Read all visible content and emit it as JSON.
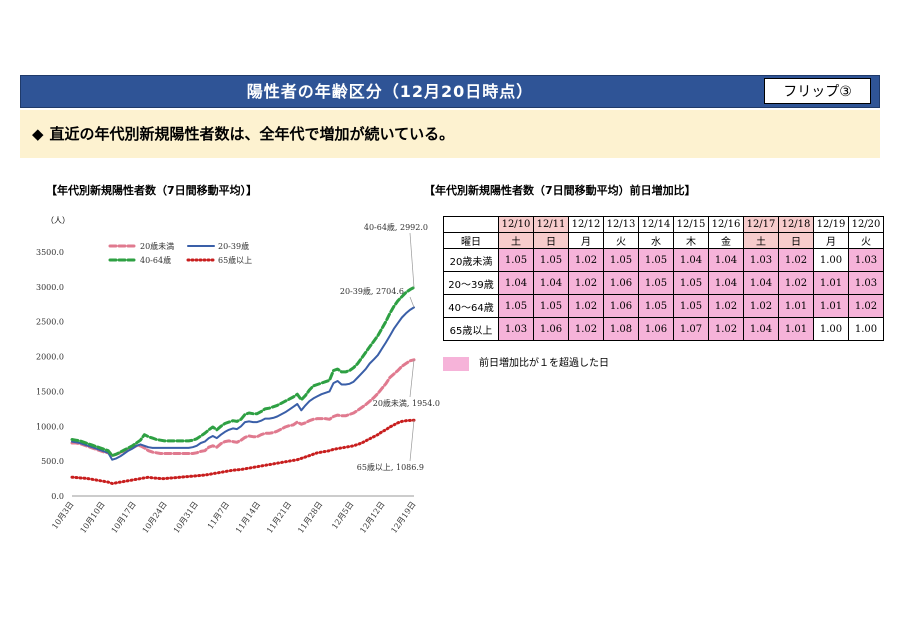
{
  "banner": {
    "title": "陽性者の年齢区分（12月20日時点）",
    "flip_label": "フリップ③"
  },
  "lead": {
    "bullet": "◆",
    "text": "直近の年代別新規陽性者数は、全年代で増加が続いている。"
  },
  "chart_title": "【年代別新規陽性者数（7日間移動平均）】",
  "table_title": "【年代別新規陽性者数（7日間移動平均）前日増加比】",
  "chart_data": {
    "type": "line",
    "y_unit": "（人）",
    "ylim": [
      0,
      3500
    ],
    "y_ticks": [
      "0.0",
      "500.0",
      "1000.0",
      "1500.0",
      "2000.0",
      "2500.0",
      "3000.0",
      "3500.0"
    ],
    "x_tick_labels": [
      "10月3日",
      "10月10日",
      "10月17日",
      "10月24日",
      "10月31日",
      "11月7日",
      "11月14日",
      "11月21日",
      "11月28日",
      "12月5日",
      "12月12日",
      "12月19日"
    ],
    "legend_position": "top-left",
    "series": [
      {
        "name": "20歳未満",
        "color": "#e07a8f",
        "style": "dashed",
        "end_label": "20歳未満, 1954.0",
        "values": [
          760,
          760,
          750,
          730,
          710,
          690,
          670,
          650,
          630,
          620,
          580,
          600,
          620,
          650,
          670,
          690,
          720,
          720,
          690,
          650,
          630,
          620,
          610,
          610,
          610,
          610,
          610,
          610,
          610,
          610,
          610,
          620,
          640,
          650,
          700,
          720,
          700,
          750,
          780,
          790,
          780,
          770,
          800,
          840,
          860,
          850,
          850,
          880,
          900,
          900,
          910,
          930,
          960,
          990,
          1010,
          1020,
          1060,
          1030,
          1050,
          1080,
          1100,
          1110,
          1110,
          1110,
          1100,
          1140,
          1160,
          1150,
          1150,
          1170,
          1190,
          1230,
          1270,
          1310,
          1360,
          1410,
          1470,
          1540,
          1610,
          1700,
          1750,
          1800,
          1860,
          1900,
          1940,
          1954
        ]
      },
      {
        "name": "20-39歳",
        "color": "#3a5fa8",
        "style": "solid",
        "end_label": "20-39歳, 2704.6",
        "values": [
          780,
          770,
          760,
          740,
          720,
          700,
          680,
          660,
          640,
          620,
          520,
          540,
          570,
          610,
          650,
          680,
          720,
          740,
          720,
          700,
          690,
          690,
          690,
          690,
          690,
          690,
          690,
          690,
          690,
          690,
          700,
          720,
          760,
          780,
          830,
          860,
          830,
          880,
          920,
          950,
          970,
          960,
          1000,
          1060,
          1070,
          1060,
          1060,
          1080,
          1110,
          1110,
          1120,
          1140,
          1170,
          1200,
          1240,
          1280,
          1320,
          1230,
          1300,
          1360,
          1400,
          1430,
          1460,
          1480,
          1500,
          1620,
          1650,
          1600,
          1600,
          1610,
          1640,
          1700,
          1760,
          1820,
          1900,
          1960,
          2020,
          2110,
          2200,
          2300,
          2400,
          2480,
          2560,
          2620,
          2670,
          2705
        ]
      },
      {
        "name": "40-64歳",
        "color": "#2ea043",
        "style": "dashed",
        "end_label": "40-64歳, 2992.0",
        "values": [
          810,
          800,
          790,
          770,
          750,
          730,
          710,
          690,
          670,
          650,
          580,
          600,
          630,
          660,
          690,
          720,
          760,
          800,
          880,
          850,
          830,
          810,
          800,
          790,
          790,
          790,
          790,
          790,
          790,
          790,
          800,
          820,
          860,
          900,
          950,
          990,
          950,
          1000,
          1040,
          1060,
          1080,
          1070,
          1100,
          1170,
          1190,
          1180,
          1180,
          1210,
          1250,
          1260,
          1280,
          1300,
          1330,
          1360,
          1390,
          1420,
          1460,
          1380,
          1440,
          1520,
          1580,
          1600,
          1620,
          1640,
          1660,
          1800,
          1820,
          1780,
          1780,
          1800,
          1840,
          1900,
          1980,
          2060,
          2140,
          2220,
          2300,
          2400,
          2500,
          2620,
          2720,
          2800,
          2860,
          2920,
          2960,
          2992
        ]
      },
      {
        "name": "65歳以上",
        "color": "#c81e1e",
        "style": "dotted",
        "end_label": "65歳以上, 1086.9",
        "values": [
          270,
          265,
          260,
          255,
          250,
          240,
          230,
          220,
          210,
          200,
          180,
          190,
          200,
          210,
          220,
          230,
          240,
          250,
          260,
          270,
          260,
          255,
          250,
          250,
          255,
          260,
          265,
          270,
          275,
          280,
          285,
          290,
          295,
          300,
          310,
          320,
          330,
          340,
          350,
          360,
          370,
          375,
          380,
          390,
          400,
          410,
          420,
          430,
          440,
          450,
          460,
          470,
          480,
          490,
          500,
          510,
          520,
          540,
          560,
          580,
          600,
          620,
          630,
          640,
          650,
          670,
          680,
          690,
          700,
          710,
          720,
          740,
          760,
          790,
          820,
          850,
          880,
          920,
          950,
          990,
          1020,
          1050,
          1070,
          1080,
          1085,
          1087
        ]
      }
    ]
  },
  "ratio_table": {
    "header_day_label": "曜日",
    "dates": [
      "12/10",
      "12/11",
      "12/12",
      "12/13",
      "12/14",
      "12/15",
      "12/16",
      "12/17",
      "12/18",
      "12/19",
      "12/20"
    ],
    "weekdays": [
      "土",
      "日",
      "月",
      "火",
      "水",
      "木",
      "金",
      "土",
      "日",
      "月",
      "火"
    ],
    "rows": [
      {
        "label": "20歳未満",
        "values": [
          "1.05",
          "1.05",
          "1.02",
          "1.05",
          "1.05",
          "1.04",
          "1.04",
          "1.03",
          "1.02",
          "1.00",
          "1.03"
        ]
      },
      {
        "label": "20～39歳",
        "values": [
          "1.04",
          "1.04",
          "1.02",
          "1.06",
          "1.05",
          "1.05",
          "1.04",
          "1.04",
          "1.02",
          "1.01",
          "1.03"
        ]
      },
      {
        "label": "40～64歳",
        "values": [
          "1.05",
          "1.05",
          "1.02",
          "1.06",
          "1.05",
          "1.05",
          "1.02",
          "1.02",
          "1.01",
          "1.01",
          "1.02"
        ]
      },
      {
        "label": "65歳以上",
        "values": [
          "1.03",
          "1.06",
          "1.02",
          "1.08",
          "1.06",
          "1.07",
          "1.02",
          "1.04",
          "1.01",
          "1.00",
          "1.00"
        ]
      }
    ],
    "weekend_color": "#f7cccc",
    "highlight_color": "#f6b3d9",
    "legend_text": "前日増加比が１を超過した日"
  }
}
